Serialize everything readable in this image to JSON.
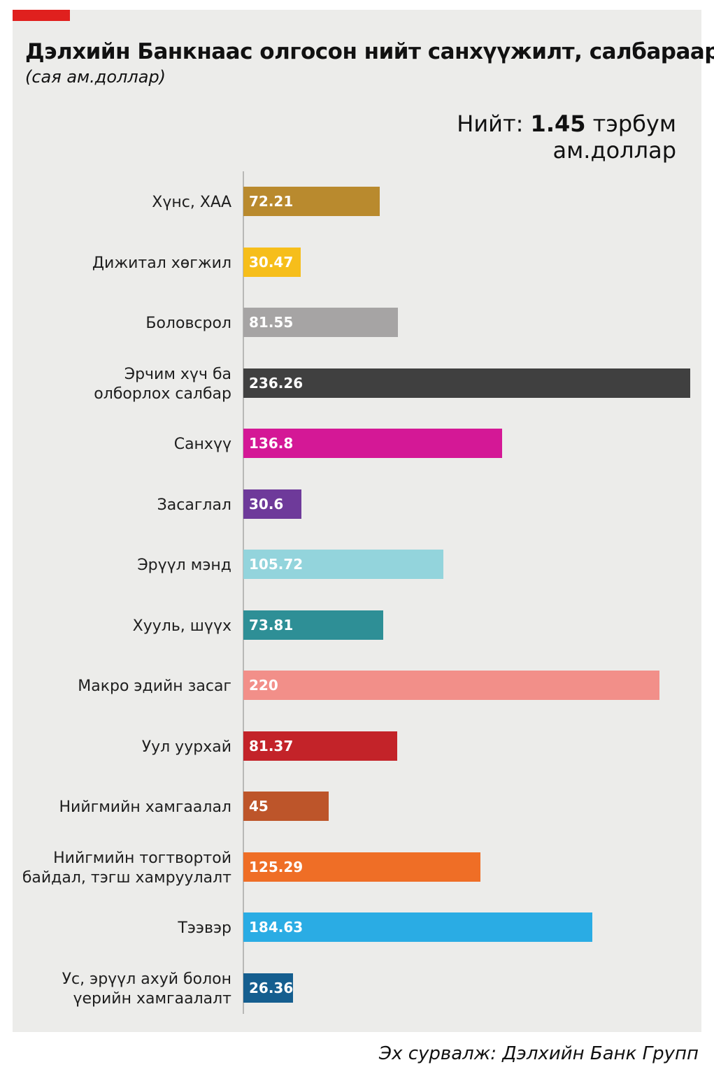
{
  "title": "Дэлхийн Банкнаас олгосон нийт санхүүжилт, салбараар",
  "subtitle": "(сая ам.доллар)",
  "total": {
    "prefix": "Нийт: ",
    "value": "1.45",
    "suffix": " тэрбум",
    "line2": "ам.доллар"
  },
  "source": "Эх сурвалж: Дэлхийн Банк Групп",
  "colors": {
    "accent": "#e0201e",
    "panel_bg": "#ececea"
  },
  "chart_data": {
    "type": "bar",
    "orientation": "horizontal",
    "categories": [
      "Хүнс, ХАА",
      "Дижитал хөгжил",
      "Боловсрол",
      "Эрчим хүч ба\nолборлох салбар",
      "Санхүү",
      "Засаглал",
      "Эрүүл мэнд",
      "Хууль, шүүх",
      "Макро эдийн засаг",
      "Уул уурхай",
      "Нийгмийн хамгаалал",
      "Нийгмийн тогтвортой\nбайдал, тэгш хамруулалт",
      "Тээвэр",
      "Ус, эрүүл ахуй болон\nүерийн хамгаалалт"
    ],
    "values": [
      72.21,
      30.47,
      81.55,
      236.26,
      136.8,
      30.6,
      105.72,
      73.81,
      220,
      81.37,
      45,
      125.29,
      184.63,
      26.36
    ],
    "value_labels": [
      "72.21",
      "30.47",
      "81.55",
      "236.26",
      "136.8",
      "30.6",
      "105.72",
      "73.81",
      "220",
      "81.37",
      "45",
      "125.29",
      "184.63",
      "26.36"
    ],
    "bar_colors": [
      "#b98a2e",
      "#f6be1b",
      "#a6a4a4",
      "#404040",
      "#d41896",
      "#6e3a9a",
      "#93d4dc",
      "#2e8f96",
      "#f28f89",
      "#c32329",
      "#bd552a",
      "#ef6e26",
      "#2aace4",
      "#155e8f"
    ],
    "xlim": [
      0,
      236.26
    ],
    "grid": false,
    "legend": "none"
  }
}
